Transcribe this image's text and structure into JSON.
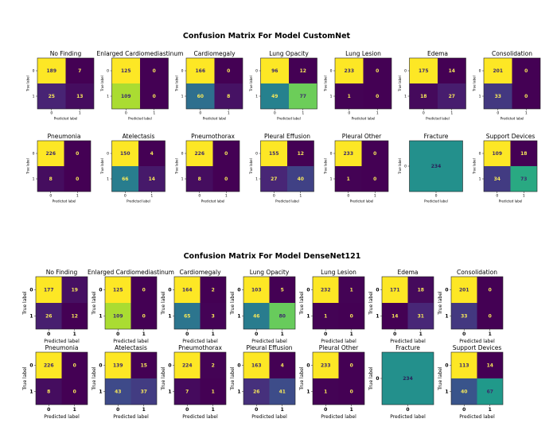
{
  "figures": [
    {
      "title": "Confusion Matrix For Model CustomNet",
      "style": "small",
      "xlabel": "Predicted label",
      "ylabel": "True label",
      "ticks": [
        "0",
        "1"
      ]
    },
    {
      "title": "Confusion Matrix For Model DenseNet121",
      "style": "large",
      "xlabel": "Predicted label",
      "ylabel": "True label",
      "ticks": [
        "0",
        "1"
      ]
    }
  ],
  "colormap": "viridis",
  "chart_data": [
    {
      "type": "heatmap",
      "title": "Confusion Matrix For Model CustomNet",
      "xlabel": "Predicted label",
      "ylabel": "True label",
      "matrices": [
        {
          "label": "No Finding",
          "values": [
            [
              189,
              7
            ],
            [
              25,
              13
            ]
          ]
        },
        {
          "label": "Enlarged Cardiomediastinum",
          "values": [
            [
              125,
              0
            ],
            [
              109,
              0
            ]
          ]
        },
        {
          "label": "Cardiomegaly",
          "values": [
            [
              166,
              0
            ],
            [
              60,
              8
            ]
          ]
        },
        {
          "label": "Lung Opacity",
          "values": [
            [
              96,
              12
            ],
            [
              49,
              77
            ]
          ]
        },
        {
          "label": "Lung Lesion",
          "values": [
            [
              233,
              0
            ],
            [
              1,
              0
            ]
          ]
        },
        {
          "label": "Edema",
          "values": [
            [
              175,
              14
            ],
            [
              18,
              27
            ]
          ]
        },
        {
          "label": "Consolidation",
          "values": [
            [
              201,
              0
            ],
            [
              33,
              0
            ]
          ]
        },
        {
          "label": "Pneumonia",
          "values": [
            [
              226,
              0
            ],
            [
              8,
              0
            ]
          ]
        },
        {
          "label": "Atelectasis",
          "values": [
            [
              150,
              4
            ],
            [
              66,
              14
            ]
          ]
        },
        {
          "label": "Pneumothorax",
          "values": [
            [
              226,
              0
            ],
            [
              8,
              0
            ]
          ]
        },
        {
          "label": "Pleural Effusion",
          "values": [
            [
              155,
              12
            ],
            [
              27,
              40
            ]
          ]
        },
        {
          "label": "Pleural Other",
          "values": [
            [
              233,
              0
            ],
            [
              1,
              0
            ]
          ]
        },
        {
          "label": "Fracture",
          "values": [
            [
              234
            ]
          ]
        },
        {
          "label": "Support Devices",
          "values": [
            [
              109,
              18
            ],
            [
              34,
              73
            ]
          ]
        }
      ]
    },
    {
      "type": "heatmap",
      "title": "Confusion Matrix For Model DenseNet121",
      "xlabel": "Predicted label",
      "ylabel": "True label",
      "matrices": [
        {
          "label": "No Finding",
          "values": [
            [
              177,
              19
            ],
            [
              26,
              12
            ]
          ]
        },
        {
          "label": "Enlarged Cardiomediastinum",
          "values": [
            [
              125,
              0
            ],
            [
              109,
              0
            ]
          ]
        },
        {
          "label": "Cardiomegaly",
          "values": [
            [
              164,
              2
            ],
            [
              65,
              3
            ]
          ]
        },
        {
          "label": "Lung Opacity",
          "values": [
            [
              103,
              5
            ],
            [
              46,
              80
            ]
          ]
        },
        {
          "label": "Lung Lesion",
          "values": [
            [
              232,
              1
            ],
            [
              1,
              0
            ]
          ]
        },
        {
          "label": "Edema",
          "values": [
            [
              171,
              18
            ],
            [
              14,
              31
            ]
          ]
        },
        {
          "label": "Consolidation",
          "values": [
            [
              201,
              0
            ],
            [
              33,
              0
            ]
          ]
        },
        {
          "label": "Pneumonia",
          "values": [
            [
              226,
              0
            ],
            [
              8,
              0
            ]
          ]
        },
        {
          "label": "Atelectasis",
          "values": [
            [
              139,
              15
            ],
            [
              43,
              37
            ]
          ]
        },
        {
          "label": "Pneumothorax",
          "values": [
            [
              224,
              2
            ],
            [
              7,
              1
            ]
          ]
        },
        {
          "label": "Pleural Effusion",
          "values": [
            [
              163,
              4
            ],
            [
              26,
              41
            ]
          ]
        },
        {
          "label": "Pleural Other",
          "values": [
            [
              233,
              0
            ],
            [
              1,
              0
            ]
          ]
        },
        {
          "label": "Fracture",
          "values": [
            [
              234
            ]
          ]
        },
        {
          "label": "Support Devices",
          "values": [
            [
              113,
              14
            ],
            [
              40,
              67
            ]
          ]
        }
      ]
    }
  ]
}
